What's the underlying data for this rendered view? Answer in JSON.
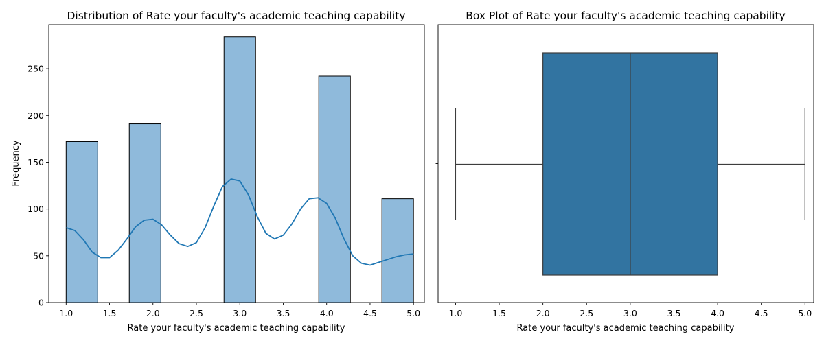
{
  "chart_data": [
    {
      "type": "bar",
      "title": "Distribution of Rate your faculty's academic teaching capability",
      "xlabel": "Rate your faculty's academic teaching capability",
      "ylabel": "Frequency",
      "xlim": [
        0.8,
        5.125
      ],
      "ylim": [
        0,
        297
      ],
      "xticks": [
        1.0,
        1.5,
        2.0,
        2.5,
        3.0,
        3.5,
        4.0,
        4.5,
        5.0
      ],
      "xtick_labels": [
        "1.0",
        "1.5",
        "2.0",
        "2.5",
        "3.0",
        "3.5",
        "4.0",
        "4.5",
        "5.0"
      ],
      "yticks": [
        0,
        50,
        100,
        150,
        200,
        250
      ],
      "ytick_labels": [
        "0",
        "50",
        "100",
        "150",
        "200",
        "250"
      ],
      "bars": [
        {
          "x0": 1.0,
          "x1": 1.364,
          "value": 172
        },
        {
          "x0": 1.727,
          "x1": 2.091,
          "value": 191
        },
        {
          "x0": 2.818,
          "x1": 3.182,
          "value": 284
        },
        {
          "x0": 3.909,
          "x1": 4.273,
          "value": 242
        },
        {
          "x0": 4.636,
          "x1": 5.0,
          "value": 111
        }
      ],
      "kde": {
        "x": [
          1.0,
          1.1,
          1.2,
          1.3,
          1.4,
          1.5,
          1.6,
          1.7,
          1.8,
          1.9,
          2.0,
          2.1,
          2.2,
          2.3,
          2.4,
          2.5,
          2.6,
          2.7,
          2.8,
          2.9,
          3.0,
          3.1,
          3.2,
          3.3,
          3.4,
          3.5,
          3.6,
          3.7,
          3.8,
          3.9,
          4.0,
          4.1,
          4.2,
          4.3,
          4.4,
          4.5,
          4.6,
          4.7,
          4.8,
          4.9,
          5.0
        ],
        "y": [
          80,
          77,
          67,
          54,
          48,
          48,
          56,
          68,
          81,
          88,
          89,
          83,
          72,
          63,
          60,
          64,
          80,
          103,
          124,
          132,
          130,
          115,
          92,
          74,
          68,
          72,
          84,
          100,
          111,
          112,
          106,
          90,
          68,
          50,
          42,
          40,
          43,
          46,
          49,
          51,
          52
        ]
      },
      "colors": {
        "bar": "#8fbadb",
        "edge": "#000000",
        "kde": "#1f77b4"
      }
    },
    {
      "type": "box",
      "title": "Box Plot of Rate your faculty's academic teaching capability",
      "xlabel": "Rate your faculty's academic teaching capability",
      "xlim": [
        0.8,
        5.1
      ],
      "xticks": [
        1.0,
        1.5,
        2.0,
        2.5,
        3.0,
        3.5,
        4.0,
        4.5,
        5.0
      ],
      "xtick_labels": [
        "1.0",
        "1.5",
        "2.0",
        "2.5",
        "3.0",
        "3.5",
        "4.0",
        "4.5",
        "5.0"
      ],
      "stats": {
        "whisker_low": 1.0,
        "q1": 2.0,
        "median": 3.0,
        "q3": 4.0,
        "whisker_high": 5.0
      },
      "colors": {
        "box": "#3274a1",
        "line": "#3d3d3d"
      }
    }
  ]
}
